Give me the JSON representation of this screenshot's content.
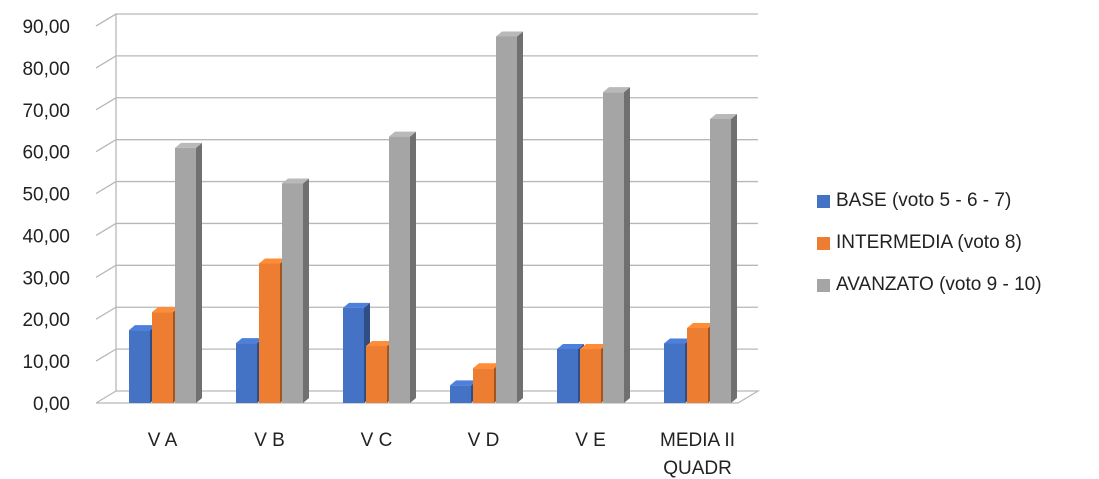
{
  "chart_data": {
    "type": "bar",
    "title": "",
    "xlabel": "",
    "ylabel": "",
    "ylim": [
      0,
      90
    ],
    "ytick_step": 10,
    "ytick_labels": [
      "0,00",
      "10,00",
      "20,00",
      "30,00",
      "40,00",
      "50,00",
      "60,00",
      "70,00",
      "80,00",
      "90,00"
    ],
    "grid": true,
    "legend_position": "right",
    "categories": [
      {
        "lines": [
          "V A"
        ]
      },
      {
        "lines": [
          "V B"
        ]
      },
      {
        "lines": [
          "V C"
        ]
      },
      {
        "lines": [
          "V D"
        ]
      },
      {
        "lines": [
          "V E"
        ]
      },
      {
        "lines": [
          "MEDIA II",
          "QUADR"
        ]
      }
    ],
    "series": [
      {
        "name": "BASE (voto 5 - 6 - 7)",
        "color": "#4472c4",
        "values": [
          17.4,
          14.3,
          22.7,
          4.2,
          12.9,
          14.2
        ]
      },
      {
        "name": "INTERMEDIA (voto 8)",
        "color": "#ed7d31",
        "values": [
          21.7,
          33.3,
          13.6,
          8.3,
          12.9,
          17.9
        ]
      },
      {
        "name": "AVANZATO (voto 9 - 10)",
        "color": "#a5a5a5",
        "values": [
          60.9,
          52.4,
          63.6,
          87.5,
          74.2,
          67.8
        ]
      }
    ]
  }
}
